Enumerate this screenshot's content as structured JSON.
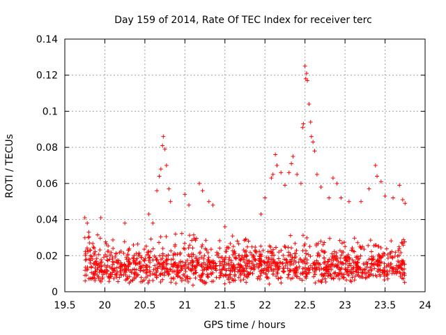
{
  "chart_data": {
    "type": "scatter",
    "title": "Day 159 of 2014, Rate Of TEC Index for receiver terc",
    "xlabel": "GPS time / hours",
    "ylabel": "ROTI / TECUs",
    "xlim": [
      19.5,
      24
    ],
    "ylim": [
      0,
      0.14
    ],
    "xticks": [
      "19.5",
      "20",
      "20.5",
      "21",
      "21.5",
      "22",
      "22.5",
      "23",
      "23.5",
      "24"
    ],
    "yticks": [
      "0",
      "0.02",
      "0.04",
      "0.06",
      "0.08",
      "0.1",
      "0.12",
      "0.14"
    ],
    "grid": true,
    "marker": "+",
    "color": "#ff0000",
    "x_range_of_data": [
      19.75,
      23.75
    ],
    "baseline_band": [
      0.005,
      0.035
    ],
    "series": [
      {
        "name": "ROTI",
        "points": [
          [
            19.75,
            0.041
          ],
          [
            19.78,
            0.038
          ],
          [
            19.8,
            0.033
          ],
          [
            19.95,
            0.041
          ],
          [
            20.25,
            0.038
          ],
          [
            20.55,
            0.043
          ],
          [
            20.6,
            0.038
          ],
          [
            20.65,
            0.056
          ],
          [
            20.68,
            0.064
          ],
          [
            20.7,
            0.068
          ],
          [
            20.72,
            0.081
          ],
          [
            20.73,
            0.086
          ],
          [
            20.75,
            0.079
          ],
          [
            20.77,
            0.07
          ],
          [
            20.8,
            0.057
          ],
          [
            20.82,
            0.05
          ],
          [
            21.0,
            0.054
          ],
          [
            21.05,
            0.048
          ],
          [
            21.18,
            0.06
          ],
          [
            21.22,
            0.056
          ],
          [
            21.3,
            0.05
          ],
          [
            21.35,
            0.048
          ],
          [
            21.5,
            0.036
          ],
          [
            21.95,
            0.043
          ],
          [
            22.0,
            0.052
          ],
          [
            22.08,
            0.063
          ],
          [
            22.1,
            0.065
          ],
          [
            22.13,
            0.076
          ],
          [
            22.15,
            0.07
          ],
          [
            22.2,
            0.066
          ],
          [
            22.25,
            0.059
          ],
          [
            22.3,
            0.066
          ],
          [
            22.33,
            0.071
          ],
          [
            22.35,
            0.075
          ],
          [
            22.4,
            0.065
          ],
          [
            22.45,
            0.06
          ],
          [
            22.47,
            0.091
          ],
          [
            22.48,
            0.093
          ],
          [
            22.5,
            0.125
          ],
          [
            22.51,
            0.118
          ],
          [
            22.52,
            0.121
          ],
          [
            22.53,
            0.117
          ],
          [
            22.55,
            0.104
          ],
          [
            22.57,
            0.094
          ],
          [
            22.58,
            0.086
          ],
          [
            22.6,
            0.083
          ],
          [
            22.62,
            0.078
          ],
          [
            22.65,
            0.065
          ],
          [
            22.7,
            0.058
          ],
          [
            22.8,
            0.052
          ],
          [
            22.85,
            0.063
          ],
          [
            22.9,
            0.06
          ],
          [
            22.95,
            0.052
          ],
          [
            23.05,
            0.05
          ],
          [
            23.2,
            0.05
          ],
          [
            23.3,
            0.057
          ],
          [
            23.38,
            0.07
          ],
          [
            23.4,
            0.064
          ],
          [
            23.45,
            0.061
          ],
          [
            23.5,
            0.053
          ],
          [
            23.6,
            0.052
          ],
          [
            23.68,
            0.059
          ],
          [
            23.72,
            0.051
          ],
          [
            23.75,
            0.049
          ]
        ]
      }
    ]
  }
}
